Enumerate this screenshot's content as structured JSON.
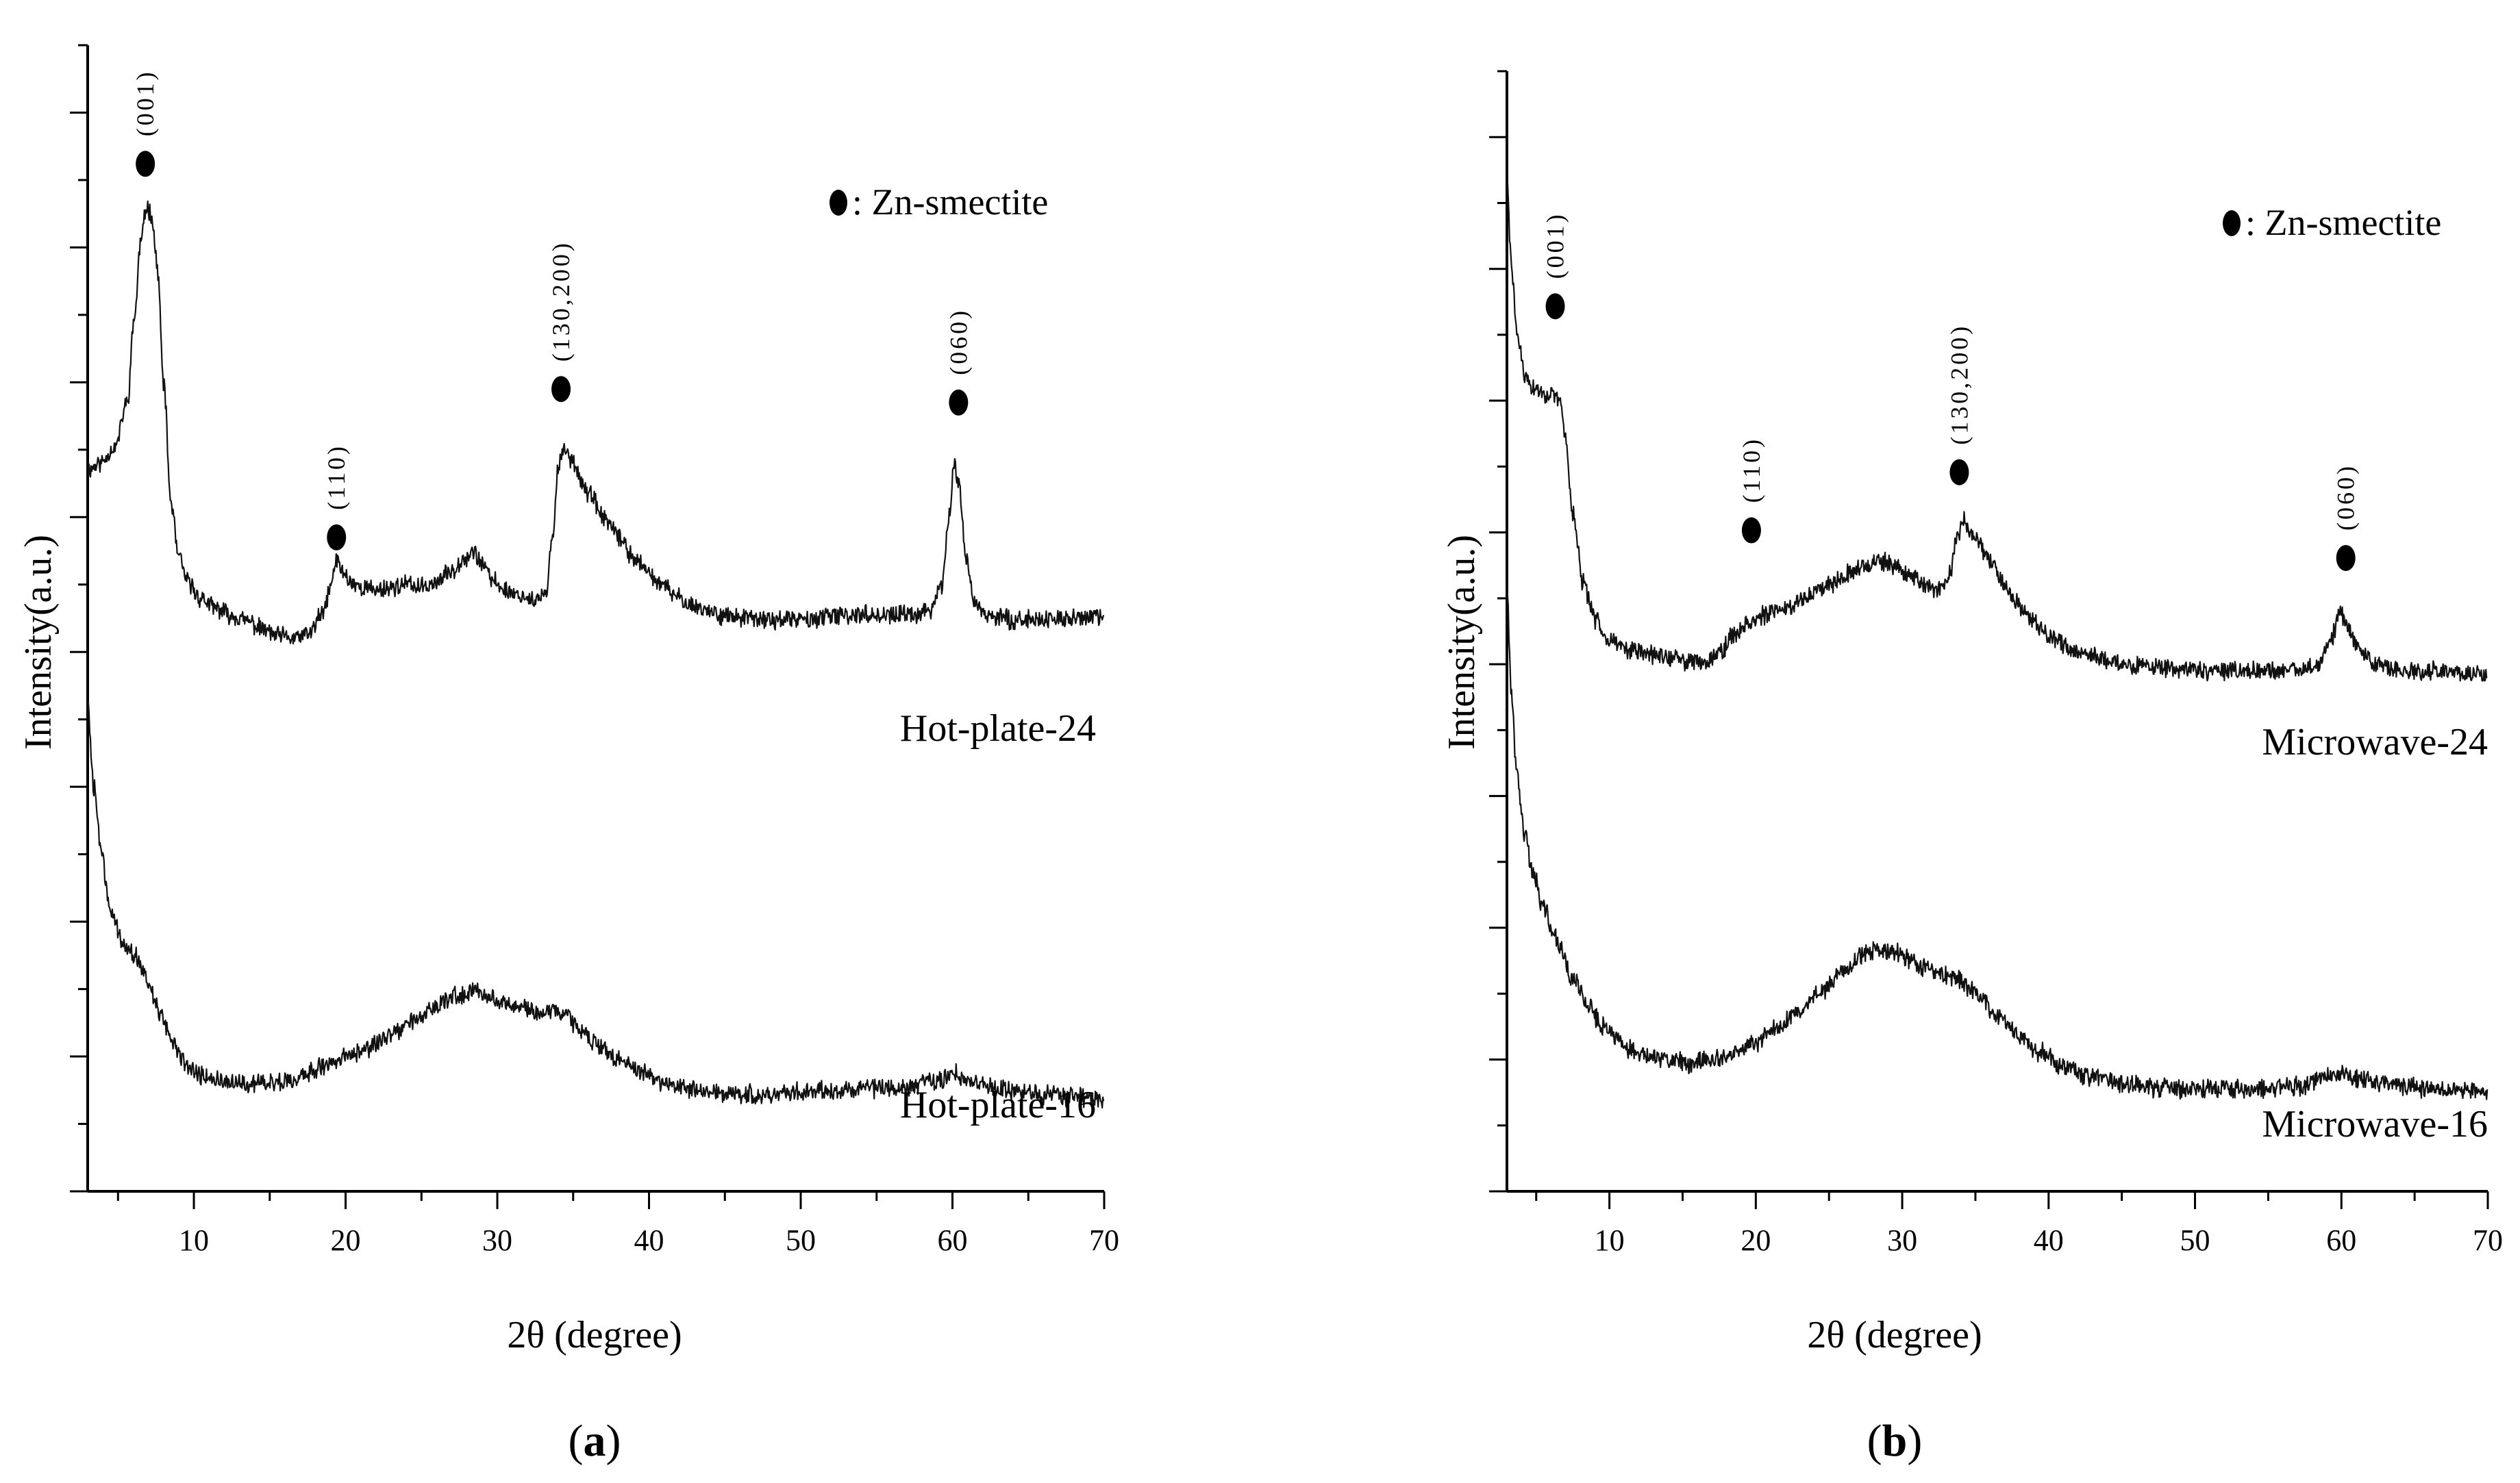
{
  "chart_data": [
    {
      "type": "line",
      "panel_label": "(a)",
      "panel_letter": "a",
      "xlabel": "2θ (degree)",
      "ylabel": "Intensity(a.u.)",
      "xlim": [
        3,
        70
      ],
      "xticks": [
        10,
        20,
        30,
        40,
        50,
        60,
        70
      ],
      "tick_labels": [
        "10",
        "20",
        "30",
        "40",
        "50",
        "60",
        "70"
      ],
      "legend": {
        "marker": "filled-circle",
        "label": ": Zn-smectite"
      },
      "series": [
        {
          "name": "Hot-plate-24",
          "offset": 3.8,
          "baseline": [
            [
              3,
              1.55
            ],
            [
              3.8,
              1.6
            ],
            [
              4.8,
              1.72
            ],
            [
              5.6,
              2.05
            ],
            [
              6.1,
              2.7
            ],
            [
              6.5,
              3.25
            ],
            [
              6.9,
              3.5
            ],
            [
              7.2,
              3.45
            ],
            [
              7.6,
              3.05
            ],
            [
              8.0,
              2.2
            ],
            [
              8.5,
              1.3
            ],
            [
              9,
              0.9
            ],
            [
              9.6,
              0.72
            ],
            [
              10.4,
              0.6
            ],
            [
              11.5,
              0.52
            ],
            [
              12.5,
              0.47
            ],
            [
              13.5,
              0.43
            ],
            [
              14.5,
              0.37
            ],
            [
              15.5,
              0.32
            ],
            [
              16.5,
              0.3
            ],
            [
              17.5,
              0.33
            ],
            [
              18.5,
              0.48
            ],
            [
              19.0,
              0.68
            ],
            [
              19.4,
              0.88
            ],
            [
              19.8,
              0.8
            ],
            [
              20.3,
              0.72
            ],
            [
              21,
              0.68
            ],
            [
              22,
              0.66
            ],
            [
              23,
              0.68
            ],
            [
              24,
              0.7
            ],
            [
              25,
              0.68
            ],
            [
              26,
              0.72
            ],
            [
              27,
              0.8
            ],
            [
              27.8,
              0.9
            ],
            [
              28.4,
              0.94
            ],
            [
              29,
              0.86
            ],
            [
              29.6,
              0.74
            ],
            [
              30.5,
              0.66
            ],
            [
              31.5,
              0.62
            ],
            [
              32.5,
              0.58
            ],
            [
              33.2,
              0.62
            ],
            [
              33.6,
              1.0
            ],
            [
              34.0,
              1.56
            ],
            [
              34.4,
              1.72
            ],
            [
              34.9,
              1.62
            ],
            [
              36,
              1.38
            ],
            [
              37,
              1.2
            ],
            [
              38,
              1.05
            ],
            [
              39,
              0.9
            ],
            [
              40,
              0.78
            ],
            [
              41,
              0.68
            ],
            [
              42,
              0.6
            ],
            [
              43,
              0.54
            ],
            [
              44,
              0.5
            ],
            [
              45,
              0.47
            ],
            [
              46,
              0.45
            ],
            [
              48,
              0.44
            ],
            [
              50,
              0.44
            ],
            [
              52,
              0.46
            ],
            [
              54,
              0.48
            ],
            [
              56,
              0.47
            ],
            [
              57.5,
              0.48
            ],
            [
              58.5,
              0.5
            ],
            [
              59.3,
              0.7
            ],
            [
              59.8,
              1.2
            ],
            [
              60.1,
              1.6
            ],
            [
              60.4,
              1.45
            ],
            [
              60.9,
              0.9
            ],
            [
              61.5,
              0.55
            ],
            [
              62.5,
              0.46
            ],
            [
              64,
              0.44
            ],
            [
              66,
              0.44
            ],
            [
              68,
              0.45
            ],
            [
              70,
              0.46
            ]
          ]
        },
        {
          "name": "Hot-plate-16",
          "offset": 0,
          "baseline": [
            [
              3,
              3.6
            ],
            [
              3.4,
              3.0
            ],
            [
              3.9,
              2.5
            ],
            [
              4.5,
              2.1
            ],
            [
              5.3,
              1.85
            ],
            [
              6.2,
              1.75
            ],
            [
              7,
              1.55
            ],
            [
              7.8,
              1.3
            ],
            [
              8.6,
              1.1
            ],
            [
              9.5,
              0.95
            ],
            [
              10.5,
              0.86
            ],
            [
              11.5,
              0.82
            ],
            [
              12.5,
              0.8
            ],
            [
              14,
              0.8
            ],
            [
              15.5,
              0.81
            ],
            [
              17,
              0.85
            ],
            [
              18.5,
              0.92
            ],
            [
              20,
              1.0
            ],
            [
              21.5,
              1.07
            ],
            [
              23,
              1.15
            ],
            [
              24.5,
              1.26
            ],
            [
              26,
              1.38
            ],
            [
              27.5,
              1.46
            ],
            [
              28.5,
              1.48
            ],
            [
              29.5,
              1.45
            ],
            [
              30.5,
              1.4
            ],
            [
              31.5,
              1.36
            ],
            [
              32.5,
              1.34
            ],
            [
              33.5,
              1.34
            ],
            [
              34.5,
              1.3
            ],
            [
              35.5,
              1.2
            ],
            [
              36.5,
              1.1
            ],
            [
              38,
              0.98
            ],
            [
              39.5,
              0.88
            ],
            [
              41,
              0.8
            ],
            [
              43,
              0.75
            ],
            [
              45,
              0.73
            ],
            [
              47,
              0.72
            ],
            [
              49,
              0.73
            ],
            [
              51,
              0.75
            ],
            [
              53,
              0.75
            ],
            [
              55,
              0.76
            ],
            [
              57,
              0.77
            ],
            [
              58.5,
              0.8
            ],
            [
              59.5,
              0.84
            ],
            [
              60.2,
              0.88
            ],
            [
              61,
              0.82
            ],
            [
              62.5,
              0.77
            ],
            [
              64,
              0.75
            ],
            [
              66,
              0.72
            ],
            [
              68,
              0.7
            ],
            [
              70,
              0.68
            ]
          ]
        }
      ],
      "annotations": [
        {
          "label": "(001)",
          "x": 6.8,
          "y": 7.62
        },
        {
          "label": "(110)",
          "x": 19.4,
          "y": 4.85
        },
        {
          "label": "(130,200)",
          "x": 34.2,
          "y": 5.95
        },
        {
          "label": "(060)",
          "x": 60.4,
          "y": 5.85
        }
      ]
    },
    {
      "type": "line",
      "panel_label": "(b)",
      "panel_letter": "b",
      "xlabel": "2θ (degree)",
      "ylabel": "Intensity(a.u.)",
      "xlim": [
        3,
        70
      ],
      "xticks": [
        10,
        20,
        30,
        40,
        50,
        60,
        70
      ],
      "tick_labels": [
        "10",
        "20",
        "30",
        "40",
        "50",
        "60",
        "70"
      ],
      "legend": {
        "marker": "filled-circle",
        "label": ": Zn-smectite"
      },
      "series": [
        {
          "name": "Microwave-24",
          "offset": 3.4,
          "baseline": [
            [
              3,
              3.9
            ],
            [
              3.3,
              3.3
            ],
            [
              3.7,
              2.8
            ],
            [
              4.2,
              2.5
            ],
            [
              4.8,
              2.4
            ],
            [
              5.4,
              2.38
            ],
            [
              6,
              2.35
            ],
            [
              6.6,
              2.32
            ],
            [
              7.0,
              2.05
            ],
            [
              7.5,
              1.5
            ],
            [
              8.2,
              1.0
            ],
            [
              9,
              0.74
            ],
            [
              10,
              0.6
            ],
            [
              11,
              0.53
            ],
            [
              12,
              0.5
            ],
            [
              13.5,
              0.47
            ],
            [
              15,
              0.44
            ],
            [
              16.5,
              0.43
            ],
            [
              17.5,
              0.5
            ],
            [
              18.5,
              0.62
            ],
            [
              19.5,
              0.72
            ],
            [
              20.5,
              0.76
            ],
            [
              22,
              0.82
            ],
            [
              23.5,
              0.9
            ],
            [
              25,
              1.0
            ],
            [
              26.5,
              1.08
            ],
            [
              27.5,
              1.13
            ],
            [
              28.5,
              1.15
            ],
            [
              29.5,
              1.12
            ],
            [
              30.5,
              1.06
            ],
            [
              31.5,
              0.98
            ],
            [
              32.5,
              0.94
            ],
            [
              33.2,
              1.05
            ],
            [
              33.8,
              1.35
            ],
            [
              34.2,
              1.45
            ],
            [
              35,
              1.32
            ],
            [
              36,
              1.15
            ],
            [
              37,
              0.98
            ],
            [
              38,
              0.84
            ],
            [
              39,
              0.72
            ],
            [
              40,
              0.62
            ],
            [
              41,
              0.55
            ],
            [
              42,
              0.5
            ],
            [
              44,
              0.44
            ],
            [
              46,
              0.4
            ],
            [
              48,
              0.38
            ],
            [
              50,
              0.37
            ],
            [
              52,
              0.36
            ],
            [
              54,
              0.36
            ],
            [
              56,
              0.36
            ],
            [
              57.5,
              0.38
            ],
            [
              58.5,
              0.42
            ],
            [
              59.3,
              0.6
            ],
            [
              59.9,
              0.78
            ],
            [
              60.5,
              0.68
            ],
            [
              61.2,
              0.5
            ],
            [
              62.5,
              0.4
            ],
            [
              64,
              0.37
            ],
            [
              66,
              0.36
            ],
            [
              68,
              0.35
            ],
            [
              70,
              0.34
            ]
          ]
        },
        {
          "name": "Microwave-16",
          "offset": 0,
          "baseline": [
            [
              3,
              4.4
            ],
            [
              3.3,
              3.6
            ],
            [
              3.7,
              3.0
            ],
            [
              4.2,
              2.6
            ],
            [
              4.8,
              2.3
            ],
            [
              5.5,
              2.05
            ],
            [
              6.5,
              1.8
            ],
            [
              7.5,
              1.55
            ],
            [
              8.5,
              1.35
            ],
            [
              9.5,
              1.2
            ],
            [
              10.5,
              1.1
            ],
            [
              11.5,
              1.03
            ],
            [
              12.5,
              0.98
            ],
            [
              14,
              0.95
            ],
            [
              15.5,
              0.93
            ],
            [
              17,
              0.95
            ],
            [
              18.5,
              1.0
            ],
            [
              20,
              1.08
            ],
            [
              21.5,
              1.18
            ],
            [
              23,
              1.3
            ],
            [
              24.5,
              1.45
            ],
            [
              26,
              1.6
            ],
            [
              27.5,
              1.72
            ],
            [
              28.5,
              1.76
            ],
            [
              29.5,
              1.74
            ],
            [
              30.5,
              1.68
            ],
            [
              31.5,
              1.62
            ],
            [
              32.5,
              1.58
            ],
            [
              33.5,
              1.55
            ],
            [
              34.5,
              1.48
            ],
            [
              35.5,
              1.38
            ],
            [
              36.5,
              1.26
            ],
            [
              38,
              1.12
            ],
            [
              39.5,
              1.0
            ],
            [
              41,
              0.9
            ],
            [
              43,
              0.82
            ],
            [
              45,
              0.78
            ],
            [
              47,
              0.75
            ],
            [
              49,
              0.74
            ],
            [
              51,
              0.74
            ],
            [
              53,
              0.74
            ],
            [
              55,
              0.75
            ],
            [
              57,
              0.76
            ],
            [
              58.5,
              0.8
            ],
            [
              59.5,
              0.84
            ],
            [
              60.2,
              0.87
            ],
            [
              61,
              0.82
            ],
            [
              62.5,
              0.78
            ],
            [
              64,
              0.76
            ],
            [
              66,
              0.74
            ],
            [
              68,
              0.73
            ],
            [
              70,
              0.72
            ]
          ]
        }
      ],
      "annotations": [
        {
          "label": "(001)",
          "x": 6.3,
          "y": 6.4
        },
        {
          "label": "(110)",
          "x": 19.7,
          "y": 4.78
        },
        {
          "label": "(130,200)",
          "x": 33.9,
          "y": 5.2
        },
        {
          "label": "(060)",
          "x": 60.3,
          "y": 4.58
        }
      ]
    }
  ]
}
